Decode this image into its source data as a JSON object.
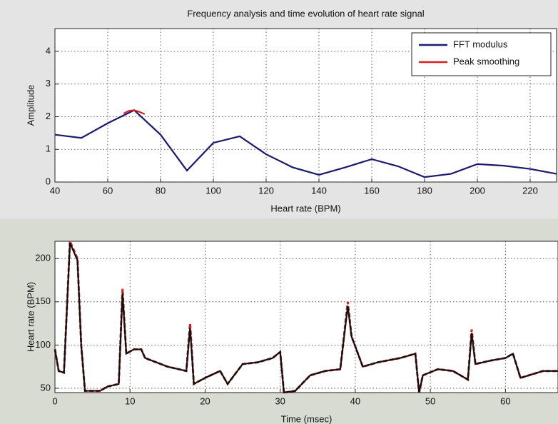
{
  "chart_data": [
    {
      "type": "line",
      "title": "Frequency analysis and time evolution of heart rate signal",
      "x_label": "Heart rate (BPM)",
      "y_label": "Amplitude",
      "xlim": [
        40,
        230
      ],
      "ylim": [
        0,
        4.7
      ],
      "xticks": [
        40,
        60,
        80,
        100,
        120,
        140,
        160,
        180,
        200,
        220
      ],
      "yticks": [
        0,
        1,
        2,
        3,
        4
      ],
      "grid": true,
      "legend": "northeast",
      "series": [
        {
          "name": "FFT modulus",
          "color": "#1a1a6e",
          "x": [
            40,
            50,
            60,
            70,
            80,
            90,
            100,
            110,
            120,
            130,
            140,
            150,
            160,
            170,
            180,
            190,
            200,
            210,
            220,
            230
          ],
          "values": [
            1.45,
            1.35,
            1.8,
            2.2,
            1.45,
            0.35,
            1.2,
            1.4,
            0.85,
            0.45,
            0.22,
            0.45,
            0.7,
            0.48,
            0.15,
            0.25,
            0.55,
            0.5,
            0.4,
            0.25
          ]
        },
        {
          "name": "Peak smoothing",
          "color": "#d42020",
          "x": [
            66,
            68,
            70,
            72,
            74
          ],
          "values": [
            2.1,
            2.18,
            2.2,
            2.15,
            2.08
          ]
        }
      ]
    },
    {
      "type": "line",
      "x_label": "Time (msec)",
      "y_label": "Heart rate (BPM)",
      "xlim": [
        0,
        67
      ],
      "ylim": [
        45,
        220
      ],
      "xticks": [
        0,
        10,
        20,
        30,
        40,
        50,
        60
      ],
      "yticks": [
        50,
        100,
        150,
        200
      ],
      "grid": true,
      "series": [
        {
          "color": "#d42020",
          "dashed": true,
          "x": [
            0,
            0.5,
            1.2,
            2,
            3,
            3.5,
            4,
            6,
            7,
            8.5,
            9,
            9.5,
            10.5,
            11.5,
            12,
            15,
            17.5,
            18,
            18.5,
            20,
            22,
            23,
            25,
            27,
            29,
            30,
            30.5,
            32,
            34,
            36,
            38,
            39,
            39.5,
            41,
            43,
            46,
            48,
            48.5,
            49,
            51,
            53,
            55,
            55.5,
            56,
            58,
            60,
            61,
            62,
            65,
            67
          ],
          "values": [
            95,
            70,
            68,
            220,
            200,
            100,
            47,
            47,
            52,
            55,
            165,
            90,
            95,
            95,
            85,
            75,
            70,
            125,
            55,
            62,
            70,
            55,
            78,
            80,
            85,
            92,
            45,
            47,
            65,
            70,
            72,
            150,
            110,
            75,
            80,
            85,
            90,
            45,
            65,
            72,
            70,
            60,
            118,
            78,
            82,
            85,
            90,
            62,
            70,
            70
          ]
        },
        {
          "color": "#111111",
          "x": [
            0,
            0.5,
            1.2,
            2,
            3,
            3.5,
            4,
            6,
            7,
            8.5,
            9,
            9.5,
            10.5,
            11.5,
            12,
            15,
            17.5,
            18,
            18.5,
            20,
            22,
            23,
            25,
            27,
            29,
            30,
            30.5,
            32,
            34,
            36,
            38,
            39,
            39.5,
            41,
            43,
            46,
            48,
            48.5,
            49,
            51,
            53,
            55,
            55.5,
            56,
            58,
            60,
            61,
            62,
            65,
            67
          ],
          "values": [
            95,
            70,
            68,
            218,
            198,
            100,
            47,
            47,
            52,
            55,
            160,
            90,
            95,
            95,
            85,
            75,
            70,
            120,
            55,
            62,
            70,
            55,
            78,
            80,
            85,
            92,
            45,
            47,
            65,
            70,
            72,
            145,
            110,
            75,
            80,
            85,
            90,
            45,
            65,
            72,
            70,
            60,
            114,
            78,
            82,
            85,
            90,
            62,
            70,
            70
          ]
        }
      ]
    }
  ]
}
